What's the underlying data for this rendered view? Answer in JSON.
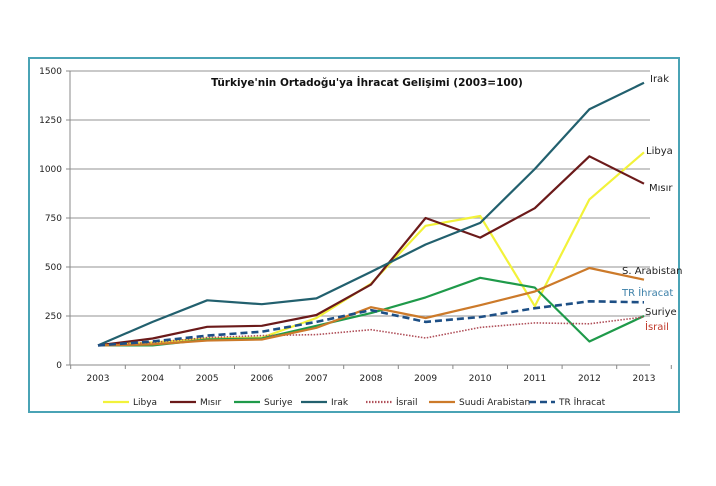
{
  "chart_data": {
    "type": "line",
    "title": "Türkiye'nin Ortadoğu'ya İhracat Gelişimi (2003=100)",
    "xlabel": "",
    "ylabel": "",
    "x": [
      "2003",
      "2004",
      "2005",
      "2006",
      "2007",
      "2008",
      "2009",
      "2010",
      "2011",
      "2012",
      "2013"
    ],
    "ylim": [
      0,
      1500
    ],
    "yticks": [
      0,
      250,
      500,
      750,
      1000,
      1250,
      1500
    ],
    "ytick_labels": [
      "0",
      "250",
      "500",
      "750",
      "1000",
      "1250",
      "1500"
    ],
    "grid": true,
    "legend_position": "bottom",
    "series": [
      {
        "name": "Libya",
        "end_label": "Libya",
        "color": "#f2f23a",
        "style": "solid",
        "values": [
          100,
          115,
          135,
          140,
          240,
          415,
          710,
          760,
          300,
          845,
          1085
        ]
      },
      {
        "name": "Mısır",
        "end_label": "Mısır",
        "color": "#6b1a1a",
        "style": "solid",
        "values": [
          100,
          135,
          195,
          200,
          255,
          410,
          750,
          650,
          800,
          1065,
          925
        ]
      },
      {
        "name": "Suriye",
        "end_label": "Suriye",
        "color": "#1f9a4a",
        "style": "solid",
        "values": [
          100,
          100,
          130,
          135,
          200,
          265,
          345,
          445,
          395,
          120,
          250
        ]
      },
      {
        "name": "Irak",
        "end_label": "Irak",
        "color": "#22606e",
        "style": "solid",
        "values": [
          100,
          220,
          330,
          310,
          340,
          475,
          615,
          725,
          1000,
          1305,
          1440
        ]
      },
      {
        "name": "İsrail",
        "end_label": "İsrail",
        "color": "#b0505a",
        "style": "dotted",
        "values": [
          100,
          115,
          140,
          150,
          155,
          180,
          138,
          192,
          215,
          210,
          245
        ]
      },
      {
        "name": "Suudi Arabistan",
        "end_label": "S. Arabistan",
        "color": "#cc7a2a",
        "style": "solid",
        "values": [
          100,
          105,
          125,
          130,
          190,
          295,
          240,
          305,
          375,
          495,
          435
        ]
      },
      {
        "name": "TR İhracat",
        "end_label": "TR İhracat",
        "color": "#1d4f85",
        "style": "dashed",
        "values": [
          100,
          120,
          150,
          170,
          220,
          280,
          220,
          245,
          290,
          325,
          320
        ]
      }
    ],
    "end_label_colors": {
      "Irak": "#222222",
      "Libya": "#222222",
      "Mısır": "#222222",
      "S. Arabistan": "#222222",
      "TR İhracat": "#3b7fa8",
      "Suriye": "#222222",
      "İsrail": "#c0392b"
    }
  }
}
